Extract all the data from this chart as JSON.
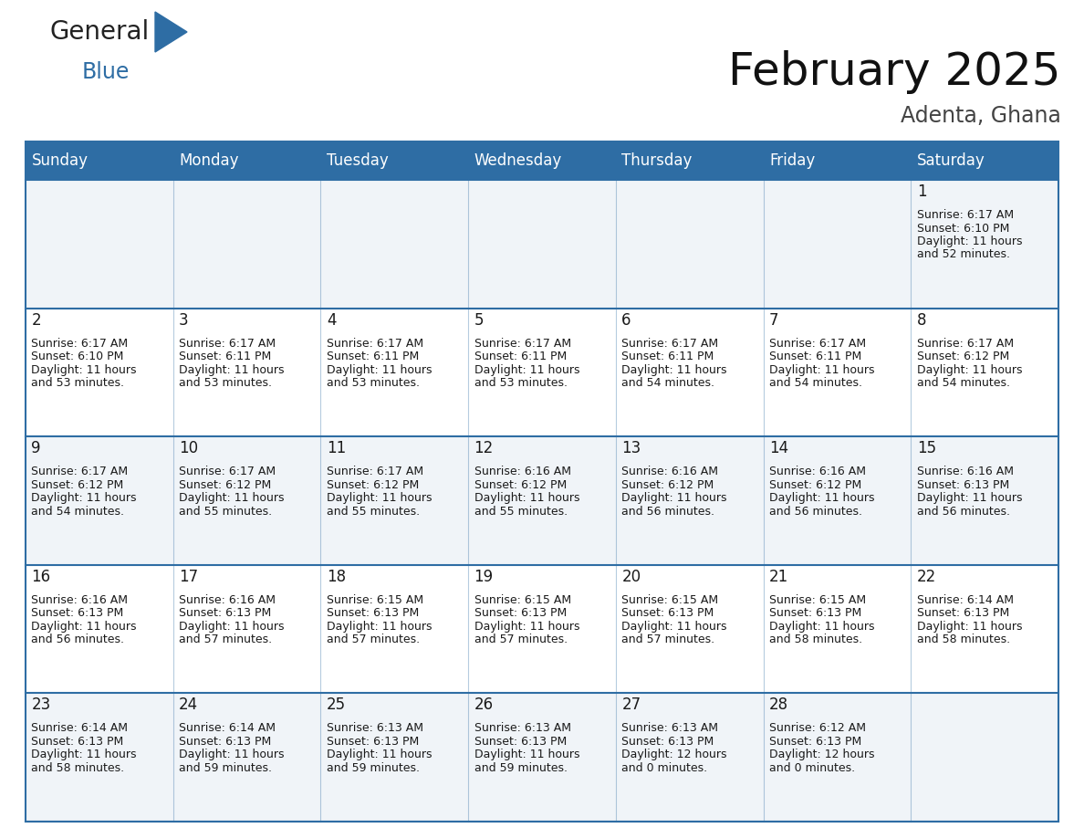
{
  "title": "February 2025",
  "subtitle": "Adenta, Ghana",
  "header_bg": "#2E6DA4",
  "header_text_color": "#FFFFFF",
  "cell_bg_odd": "#F0F4F8",
  "cell_bg_even": "#FFFFFF",
  "border_color": "#2E6DA4",
  "text_color": "#1a1a1a",
  "days_of_week": [
    "Sunday",
    "Monday",
    "Tuesday",
    "Wednesday",
    "Thursday",
    "Friday",
    "Saturday"
  ],
  "calendar_data": [
    [
      {
        "day": null,
        "sunrise": null,
        "sunset": null,
        "daylight": null
      },
      {
        "day": null,
        "sunrise": null,
        "sunset": null,
        "daylight": null
      },
      {
        "day": null,
        "sunrise": null,
        "sunset": null,
        "daylight": null
      },
      {
        "day": null,
        "sunrise": null,
        "sunset": null,
        "daylight": null
      },
      {
        "day": null,
        "sunrise": null,
        "sunset": null,
        "daylight": null
      },
      {
        "day": null,
        "sunrise": null,
        "sunset": null,
        "daylight": null
      },
      {
        "day": 1,
        "sunrise": "6:17 AM",
        "sunset": "6:10 PM",
        "daylight": "11 hours and 52 minutes."
      }
    ],
    [
      {
        "day": 2,
        "sunrise": "6:17 AM",
        "sunset": "6:10 PM",
        "daylight": "11 hours and 53 minutes."
      },
      {
        "day": 3,
        "sunrise": "6:17 AM",
        "sunset": "6:11 PM",
        "daylight": "11 hours and 53 minutes."
      },
      {
        "day": 4,
        "sunrise": "6:17 AM",
        "sunset": "6:11 PM",
        "daylight": "11 hours and 53 minutes."
      },
      {
        "day": 5,
        "sunrise": "6:17 AM",
        "sunset": "6:11 PM",
        "daylight": "11 hours and 53 minutes."
      },
      {
        "day": 6,
        "sunrise": "6:17 AM",
        "sunset": "6:11 PM",
        "daylight": "11 hours and 54 minutes."
      },
      {
        "day": 7,
        "sunrise": "6:17 AM",
        "sunset": "6:11 PM",
        "daylight": "11 hours and 54 minutes."
      },
      {
        "day": 8,
        "sunrise": "6:17 AM",
        "sunset": "6:12 PM",
        "daylight": "11 hours and 54 minutes."
      }
    ],
    [
      {
        "day": 9,
        "sunrise": "6:17 AM",
        "sunset": "6:12 PM",
        "daylight": "11 hours and 54 minutes."
      },
      {
        "day": 10,
        "sunrise": "6:17 AM",
        "sunset": "6:12 PM",
        "daylight": "11 hours and 55 minutes."
      },
      {
        "day": 11,
        "sunrise": "6:17 AM",
        "sunset": "6:12 PM",
        "daylight": "11 hours and 55 minutes."
      },
      {
        "day": 12,
        "sunrise": "6:16 AM",
        "sunset": "6:12 PM",
        "daylight": "11 hours and 55 minutes."
      },
      {
        "day": 13,
        "sunrise": "6:16 AM",
        "sunset": "6:12 PM",
        "daylight": "11 hours and 56 minutes."
      },
      {
        "day": 14,
        "sunrise": "6:16 AM",
        "sunset": "6:12 PM",
        "daylight": "11 hours and 56 minutes."
      },
      {
        "day": 15,
        "sunrise": "6:16 AM",
        "sunset": "6:13 PM",
        "daylight": "11 hours and 56 minutes."
      }
    ],
    [
      {
        "day": 16,
        "sunrise": "6:16 AM",
        "sunset": "6:13 PM",
        "daylight": "11 hours and 56 minutes."
      },
      {
        "day": 17,
        "sunrise": "6:16 AM",
        "sunset": "6:13 PM",
        "daylight": "11 hours and 57 minutes."
      },
      {
        "day": 18,
        "sunrise": "6:15 AM",
        "sunset": "6:13 PM",
        "daylight": "11 hours and 57 minutes."
      },
      {
        "day": 19,
        "sunrise": "6:15 AM",
        "sunset": "6:13 PM",
        "daylight": "11 hours and 57 minutes."
      },
      {
        "day": 20,
        "sunrise": "6:15 AM",
        "sunset": "6:13 PM",
        "daylight": "11 hours and 57 minutes."
      },
      {
        "day": 21,
        "sunrise": "6:15 AM",
        "sunset": "6:13 PM",
        "daylight": "11 hours and 58 minutes."
      },
      {
        "day": 22,
        "sunrise": "6:14 AM",
        "sunset": "6:13 PM",
        "daylight": "11 hours and 58 minutes."
      }
    ],
    [
      {
        "day": 23,
        "sunrise": "6:14 AM",
        "sunset": "6:13 PM",
        "daylight": "11 hours and 58 minutes."
      },
      {
        "day": 24,
        "sunrise": "6:14 AM",
        "sunset": "6:13 PM",
        "daylight": "11 hours and 59 minutes."
      },
      {
        "day": 25,
        "sunrise": "6:13 AM",
        "sunset": "6:13 PM",
        "daylight": "11 hours and 59 minutes."
      },
      {
        "day": 26,
        "sunrise": "6:13 AM",
        "sunset": "6:13 PM",
        "daylight": "11 hours and 59 minutes."
      },
      {
        "day": 27,
        "sunrise": "6:13 AM",
        "sunset": "6:13 PM",
        "daylight": "12 hours and 0 minutes."
      },
      {
        "day": 28,
        "sunrise": "6:12 AM",
        "sunset": "6:13 PM",
        "daylight": "12 hours and 0 minutes."
      },
      {
        "day": null,
        "sunrise": null,
        "sunset": null,
        "daylight": null
      }
    ]
  ],
  "figsize": [
    11.88,
    9.18
  ],
  "dpi": 100
}
